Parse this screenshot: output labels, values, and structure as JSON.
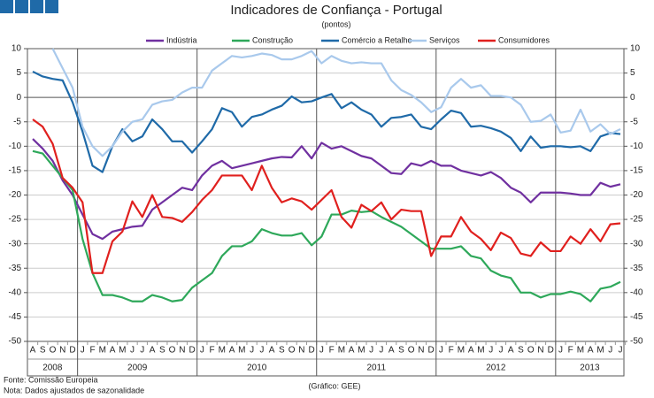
{
  "chart_data": {
    "type": "line",
    "title": "Indicadores de Confiança - Portugal",
    "subtitle": "(pontos)",
    "categories": [
      "A",
      "S",
      "O",
      "N",
      "D",
      "J",
      "F",
      "M",
      "A",
      "M",
      "J",
      "J",
      "A",
      "S",
      "O",
      "N",
      "D",
      "J",
      "F",
      "M",
      "A",
      "M",
      "J",
      "J",
      "A",
      "S",
      "O",
      "N",
      "D",
      "J",
      "F",
      "M",
      "A",
      "M",
      "J",
      "J",
      "A",
      "S",
      "O",
      "N",
      "D",
      "J",
      "F",
      "M",
      "A",
      "M",
      "J",
      "J",
      "A",
      "S",
      "O",
      "N",
      "D",
      "J",
      "F",
      "M",
      "A",
      "M",
      "J",
      "J"
    ],
    "year_groups": [
      {
        "label": "2008",
        "months": 5
      },
      {
        "label": "2009",
        "months": 12
      },
      {
        "label": "2010",
        "months": 12
      },
      {
        "label": "2011",
        "months": 12
      },
      {
        "label": "2012",
        "months": 12
      },
      {
        "label": "2013",
        "months": 7
      }
    ],
    "ylim": [
      -50,
      10
    ],
    "yticks": [
      -50,
      -45,
      -40,
      -35,
      -30,
      -25,
      -20,
      -15,
      -10,
      -5,
      0,
      5,
      10
    ],
    "grid": true,
    "legend": "top",
    "series": [
      {
        "name": "Indústria",
        "color": "#7030a0",
        "values": [
          -8.5,
          -10.5,
          -13,
          -17,
          -20,
          -24,
          -28,
          -29,
          -27.5,
          -27,
          -26.5,
          -26.3,
          -23,
          -21.5,
          -20,
          -18.5,
          -19,
          -16,
          -14,
          -13,
          -14.5,
          -14,
          -13.5,
          -13,
          -12.5,
          -12.2,
          -12.3,
          -10,
          -12.5,
          -9.3,
          -10.5,
          -10,
          -11,
          -12,
          -12.5,
          -14,
          -15.5,
          -15.7,
          -13.5,
          -14,
          -13,
          -14,
          -14,
          -15,
          -15.5,
          -16,
          -15.3,
          -16.5,
          -18.5,
          -19.5,
          -21.5,
          -19.5,
          -19.5,
          -19.5,
          -19.7,
          -20,
          -20,
          -17.5,
          -18.3,
          -17.8
        ]
      },
      {
        "name": "Construção",
        "color": "#2ea85a",
        "values": [
          -11,
          -11.5,
          -14,
          -16.5,
          -19,
          -29,
          -36,
          -40.5,
          -40.5,
          -41,
          -41.8,
          -41.8,
          -40.5,
          -41,
          -41.8,
          -41.5,
          -39,
          -37.5,
          -36,
          -32.5,
          -30.5,
          -30.5,
          -29.5,
          -27,
          -27.8,
          -28.3,
          -28.3,
          -27.8,
          -30.3,
          -28.5,
          -24,
          -24,
          -23.2,
          -23.5,
          -23.3,
          -24.5,
          -25.5,
          -26.5,
          -28,
          -29.5,
          -31,
          -31,
          -31,
          -30.5,
          -32.5,
          -33,
          -35.5,
          -36.5,
          -37,
          -40,
          -40,
          -41,
          -40.3,
          -40.3,
          -39.8,
          -40.3,
          -41.8,
          -39.2,
          -38.8,
          -37.8
        ]
      },
      {
        "name": "Comércio a Retalho",
        "color": "#1f6aa8",
        "values": [
          5.3,
          4.3,
          3.8,
          3.5,
          -1,
          -7,
          -14,
          -15.3,
          -10,
          -6.5,
          -9,
          -8,
          -4.5,
          -6.5,
          -9,
          -9,
          -11.3,
          -9,
          -6.5,
          -2.2,
          -3,
          -6,
          -4,
          -3.5,
          -2.5,
          -1.7,
          0.2,
          -1,
          -0.8,
          0,
          0.7,
          -2.2,
          -1,
          -2.5,
          -3.5,
          -6,
          -4.2,
          -4,
          -3.5,
          -6,
          -6.5,
          -4.5,
          -2.7,
          -3.2,
          -6,
          -5.8,
          -6.3,
          -7,
          -8.3,
          -11,
          -8,
          -10.3,
          -10,
          -10,
          -10.2,
          -10,
          -11,
          -8,
          -7.3,
          -7.5
        ]
      },
      {
        "name": "Serviços",
        "color": "#a9c9ec",
        "values": [
          null,
          null,
          10,
          6,
          2,
          -6,
          -10,
          -12,
          -10,
          -7,
          -5,
          -4.5,
          -1.5,
          -0.8,
          -0.5,
          1,
          2,
          2,
          5.5,
          7,
          8.5,
          8.2,
          8.5,
          9,
          8.7,
          7.8,
          7.8,
          8.5,
          9.5,
          7,
          8.5,
          7.5,
          7,
          7.2,
          7,
          7,
          3.5,
          1.5,
          0.5,
          -1,
          -3,
          -2,
          2,
          3.8,
          2,
          2.5,
          0.3,
          0.3,
          0,
          -1.5,
          -5,
          -4.8,
          -3.5,
          -7.2,
          -6.8,
          -2.5,
          -7,
          -5.5,
          -7.5,
          -6.5
        ]
      },
      {
        "name": "Consumidores",
        "color": "#e0201e",
        "values": [
          -4.5,
          -6,
          -9.5,
          -16.5,
          -18.5,
          -21.5,
          -36,
          -36,
          -29.5,
          -27.5,
          -21.3,
          -24.5,
          -20,
          -24.5,
          -24.7,
          -25.5,
          -23.5,
          -21,
          -19,
          -16,
          -16,
          -16,
          -19,
          -14,
          -18.5,
          -21.5,
          -20.7,
          -21.3,
          -23,
          -21,
          -19,
          -24.5,
          -26.7,
          -22,
          -23.3,
          -21.5,
          -25,
          -23,
          -23.3,
          -23.3,
          -32.5,
          -28.5,
          -28.5,
          -24.5,
          -27.5,
          -29,
          -31.3,
          -27.7,
          -28.8,
          -32,
          -32.5,
          -29.7,
          -31.5,
          -31.5,
          -28.5,
          -30,
          -27,
          -29.5,
          -26,
          -25.8
        ]
      }
    ],
    "notes": [
      "Fonte: Comissão Europeia",
      "Nota: Dados ajustados de sazonalidade"
    ],
    "credit": "(Gráfico: GEE)"
  }
}
